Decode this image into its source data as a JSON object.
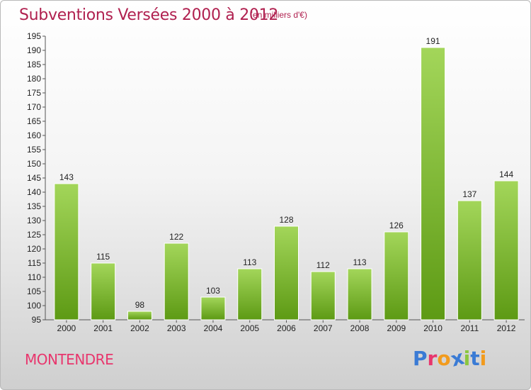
{
  "header": {
    "title": "Subventions Versées 2000 à 2012",
    "subtitle": "(en milliers d'€)"
  },
  "footer": {
    "city": "MONTENDRE",
    "logo": "Proxiti"
  },
  "colors": {
    "title": "#b0204f",
    "city": "#e8366d",
    "bar_light": "#a3d65a",
    "bar_dark": "#5d9a14",
    "logo": [
      "#3a7bd5",
      "#e8366d",
      "#f29b1d",
      "#3a7bd5",
      "#8cc63f",
      "#3a7bd5",
      "#f29b1d"
    ]
  },
  "chart_data": {
    "type": "bar",
    "title": "Subventions Versées 2000 à 2012",
    "subtitle": "(en milliers d'€)",
    "categories": [
      "2000",
      "2001",
      "2002",
      "2003",
      "2004",
      "2005",
      "2006",
      "2007",
      "2008",
      "2009",
      "2010",
      "2011",
      "2012"
    ],
    "values": [
      143,
      115,
      98,
      122,
      103,
      113,
      128,
      112,
      113,
      126,
      191,
      137,
      144
    ],
    "ylim": [
      95,
      195
    ],
    "yticks": [
      95,
      100,
      105,
      110,
      115,
      120,
      125,
      130,
      135,
      140,
      145,
      150,
      155,
      160,
      165,
      170,
      175,
      180,
      185,
      190,
      195
    ],
    "grid": false,
    "xlabel": "",
    "ylabel": ""
  }
}
